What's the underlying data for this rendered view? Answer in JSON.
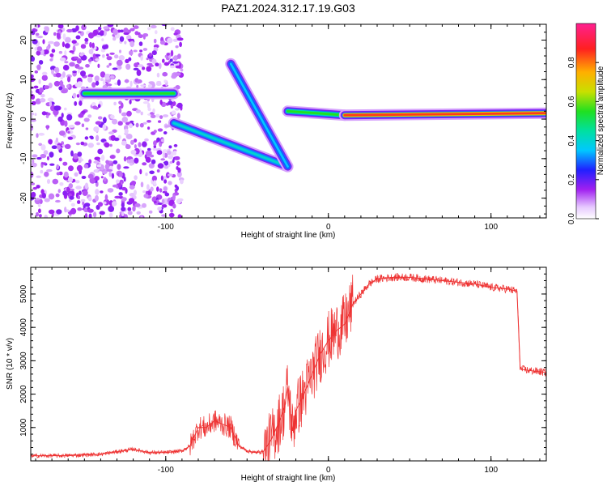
{
  "title": "PAZ1.2024.312.17.19.G03",
  "chart_data": [
    {
      "type": "heatmap",
      "xlabel": "Height of straight line (km)",
      "ylabel": "Frequency (Hz)",
      "xlim": [
        -183,
        134
      ],
      "ylim": [
        -25,
        24
      ],
      "xticks": [
        -100,
        0,
        100
      ],
      "yticks": [
        -20,
        -10,
        0,
        10,
        20
      ],
      "grid": false,
      "colorbar": {
        "label": "Normalized spectral amplitude",
        "range": [
          0,
          1
        ],
        "ticks": [
          0.0,
          0.2,
          0.4,
          0.6,
          0.8
        ],
        "tick_labels": [
          "0.0",
          "0.2",
          "0.4",
          "0.6",
          "0.8"
        ],
        "colormap": "rainbow"
      },
      "features": [
        {
          "x": [
            -150,
            -95
          ],
          "y": [
            6.5,
            6.5
          ],
          "amplitude": 0.55
        },
        {
          "x": [
            -95,
            -25
          ],
          "y": [
            -1,
            -12
          ],
          "amplitude": 0.4
        },
        {
          "x": [
            -60,
            -25
          ],
          "y": [
            14,
            -12
          ],
          "amplitude": 0.35
        },
        {
          "x": [
            -25,
            10
          ],
          "y": [
            2,
            1
          ],
          "amplitude": 0.55
        },
        {
          "x": [
            10,
            134
          ],
          "y": [
            1,
            1.5
          ],
          "amplitude": 0.85
        }
      ]
    },
    {
      "type": "line",
      "xlabel": "Height of straight line (km)",
      "ylabel": "SNR (10 * v/v)",
      "xlim": [
        -183,
        134
      ],
      "ylim": [
        0,
        5800
      ],
      "xticks": [
        -100,
        0,
        100
      ],
      "yticks": [
        1000,
        2000,
        3000,
        4000,
        5000
      ],
      "grid": false,
      "color": "#ee3333",
      "series": [
        {
          "x": [
            -183,
            -160,
            -140,
            -120,
            -110,
            -100,
            -90,
            -85,
            -80,
            -75,
            -70,
            -65,
            -60,
            -55,
            -50,
            -45,
            -40,
            -35,
            -30,
            -27,
            -25,
            -22,
            -20,
            -15,
            -10,
            -5,
            0,
            5,
            10,
            15,
            20,
            25,
            30,
            40,
            50,
            60,
            70,
            80,
            90,
            100,
            110,
            116,
            118,
            125,
            134
          ],
          "y": [
            150,
            160,
            200,
            350,
            250,
            250,
            300,
            450,
            1000,
            1000,
            1200,
            1100,
            1000,
            450,
            300,
            250,
            280,
            650,
            1200,
            1600,
            2200,
            900,
            1500,
            2000,
            2600,
            3200,
            3600,
            3900,
            4100,
            4700,
            5000,
            5300,
            5450,
            5500,
            5500,
            5450,
            5400,
            5350,
            5300,
            5200,
            5150,
            5080,
            2750,
            2700,
            2650
          ]
        }
      ]
    }
  ]
}
